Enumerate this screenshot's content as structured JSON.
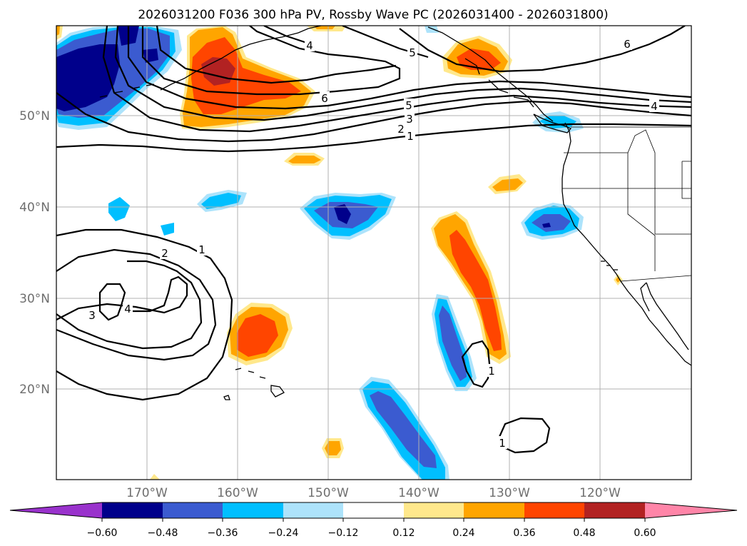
{
  "title": "2026031200 F036 300 hPa PV, Rossby Wave PC (2026031400 - 2026031800)",
  "lat_labels": [
    "50°N",
    "40°N",
    "30°N",
    "20°N"
  ],
  "lon_labels": [
    "170°W",
    "160°W",
    "150°W",
    "140°W",
    "130°W",
    "120°W"
  ],
  "contour_labels": [
    "1",
    "2",
    "3",
    "4",
    "5",
    "6",
    "1",
    "2",
    "3",
    "4",
    "5",
    "6",
    "4",
    "1",
    "1"
  ],
  "colorbar": {
    "ticks": [
      "−0.60",
      "−0.48",
      "−0.36",
      "−0.24",
      "−0.12",
      "0.12",
      "0.24",
      "0.36",
      "0.48",
      "0.60"
    ],
    "colors": [
      "#9932cc",
      "#00008b",
      "#3b5bd0",
      "#00bfff",
      "#ade3fb",
      "#ffffff",
      "#ffe88c",
      "#ffa500",
      "#ff4500",
      "#b22222",
      "#ff85a8"
    ]
  },
  "map_colors": {
    "neg1": "#ade3fb",
    "neg2": "#00bfff",
    "neg3": "#3b5bd0",
    "neg4": "#00008b",
    "pos1": "#ffe88c",
    "pos2": "#ffa500",
    "pos3": "#ff4500",
    "pos4": "#b22222"
  }
}
